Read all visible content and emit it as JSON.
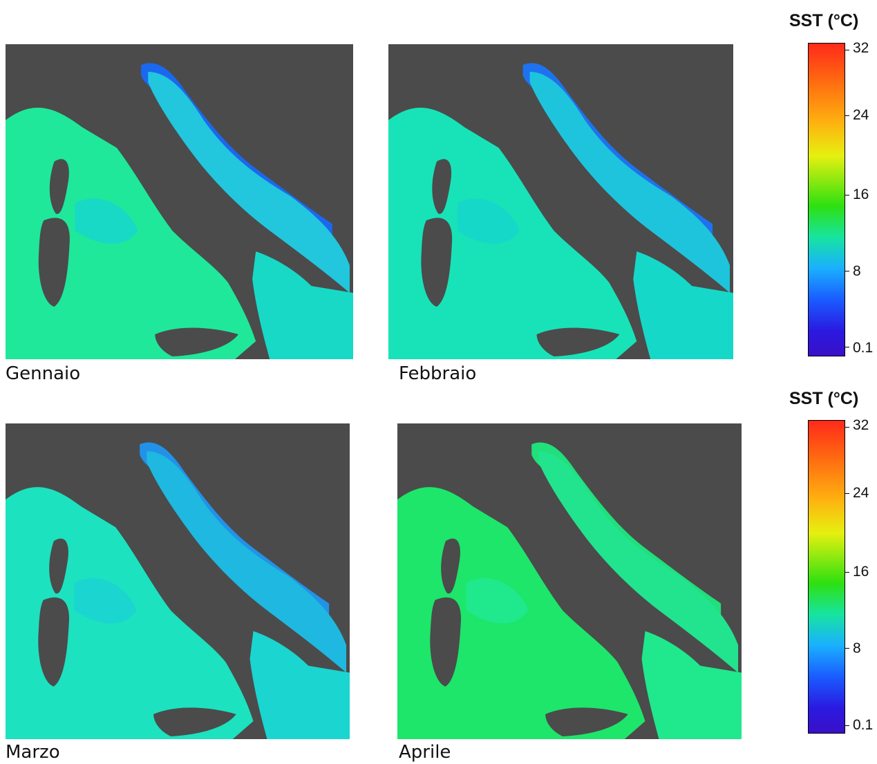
{
  "maps": [
    {
      "caption": "Gennaio",
      "theme": {
        "sea1": "#1fe89a",
        "sea2": "#17d9c6",
        "adriatic": "#22c6dd",
        "coast": "#1b68f0"
      }
    },
    {
      "caption": "Febbraio",
      "theme": {
        "sea1": "#18e3b8",
        "sea2": "#16d8c8",
        "adriatic": "#1ec4dc",
        "coast": "#1e72f0"
      }
    },
    {
      "caption": "Marzo",
      "theme": {
        "sea1": "#1ce2bf",
        "sea2": "#1ad5d0",
        "adriatic": "#1eb8e0",
        "coast": "#2292e8"
      }
    },
    {
      "caption": "Aprile",
      "theme": {
        "sea1": "#1de66a",
        "sea2": "#20e88c",
        "adriatic": "#22e48e",
        "coast": "#1fe07a"
      }
    }
  ],
  "colorbars": [
    {
      "title": "SST (°C)",
      "ticks": [
        "32",
        "24",
        "16",
        "8",
        "0.1"
      ]
    },
    {
      "title": "SST (°C)",
      "ticks": [
        "32",
        "24",
        "16",
        "8",
        "0.1"
      ]
    }
  ]
}
